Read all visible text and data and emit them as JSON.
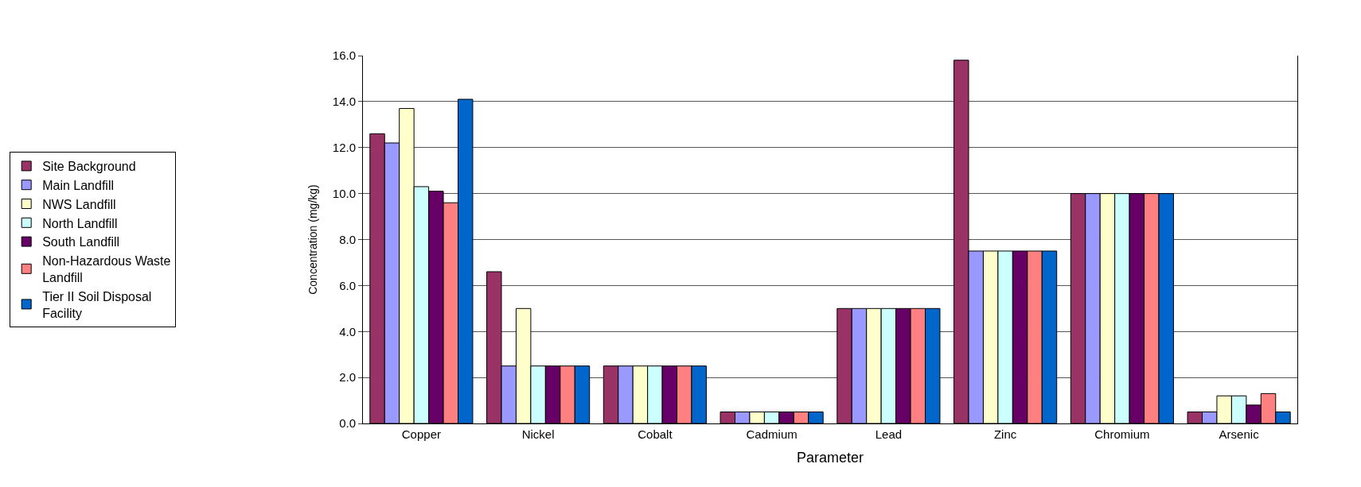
{
  "chart_data": {
    "type": "bar",
    "xlabel": "Parameter",
    "ylabel": "Concentration (mg/kg)",
    "categories": [
      "Copper",
      "Nickel",
      "Cobalt",
      "Cadmium",
      "Lead",
      "Zinc",
      "Chromium",
      "Arsenic"
    ],
    "series": [
      {
        "name": "Site Background",
        "color": "#993366",
        "values": [
          12.6,
          6.6,
          2.5,
          0.5,
          5.0,
          15.8,
          10.0,
          0.5
        ]
      },
      {
        "name": "Main Landfill",
        "color": "#9999ff",
        "values": [
          12.2,
          2.5,
          2.5,
          0.5,
          5.0,
          7.5,
          10.0,
          0.5
        ]
      },
      {
        "name": "NWS Landfill",
        "color": "#ffffcc",
        "values": [
          13.7,
          5.0,
          2.5,
          0.5,
          5.0,
          7.5,
          10.0,
          1.2
        ]
      },
      {
        "name": "North Landfill",
        "color": "#ccffff",
        "values": [
          10.3,
          2.5,
          2.5,
          0.5,
          5.0,
          7.5,
          10.0,
          1.2
        ]
      },
      {
        "name": "South Landfill",
        "color": "#660066",
        "values": [
          10.1,
          2.5,
          2.5,
          0.5,
          5.0,
          7.5,
          10.0,
          0.8
        ]
      },
      {
        "name": "Non-Hazardous Waste Landfill",
        "color": "#ff8080",
        "values": [
          9.6,
          2.5,
          2.5,
          0.5,
          5.0,
          7.5,
          10.0,
          1.3
        ]
      },
      {
        "name": "Tier II Soil Disposal Facility",
        "color": "#0066cc",
        "values": [
          14.1,
          2.5,
          2.5,
          0.5,
          5.0,
          7.5,
          10.0,
          0.5
        ]
      }
    ],
    "ylim": [
      0,
      16
    ],
    "yticks": [
      {
        "value": 0,
        "label": "0.0"
      },
      {
        "value": 2,
        "label": "2.0"
      },
      {
        "value": 4,
        "label": "4.0"
      },
      {
        "value": 6,
        "label": "6.0"
      },
      {
        "value": 8,
        "label": "8.0"
      },
      {
        "value": 10,
        "label": "10.0"
      },
      {
        "value": 12,
        "label": "12.0"
      },
      {
        "value": 14,
        "label": "14.0"
      },
      {
        "value": 16,
        "label": "16.0"
      }
    ],
    "grid": "y",
    "legend": "left"
  }
}
